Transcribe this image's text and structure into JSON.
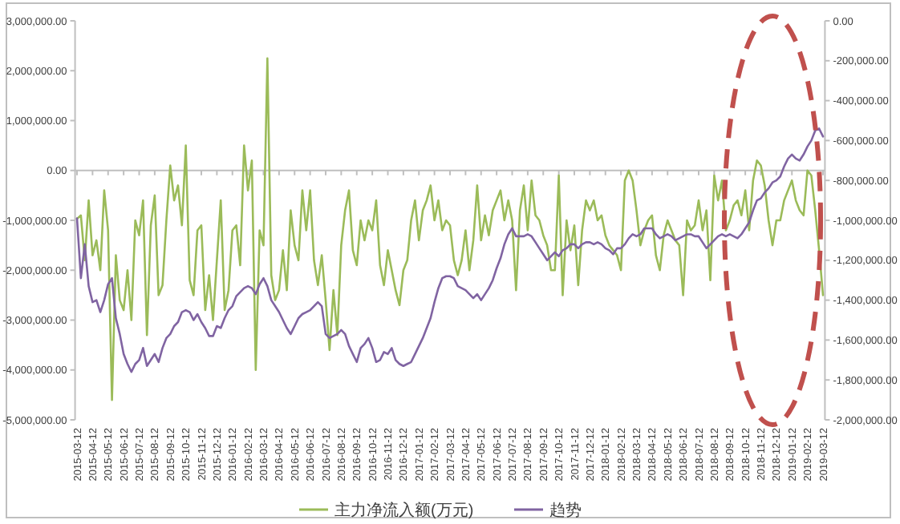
{
  "chart_data": {
    "type": "line",
    "legend": "bottom",
    "categories": [
      "2015-03-12",
      null,
      null,
      null,
      "2015-04-12",
      null,
      null,
      null,
      "2015-05-12",
      null,
      null,
      null,
      "2015-06-12",
      null,
      null,
      null,
      "2015-07-12",
      null,
      null,
      null,
      "2015-08-12",
      null,
      null,
      null,
      "2015-09-12",
      null,
      null,
      null,
      "2015-10-12",
      null,
      null,
      null,
      "2015-11-12",
      null,
      null,
      null,
      "2015-12-12",
      null,
      null,
      null,
      "2016-01-12",
      null,
      null,
      null,
      "2016-02-12",
      null,
      null,
      null,
      "2016-03-12",
      null,
      null,
      null,
      "2016-04-12",
      null,
      null,
      null,
      "2016-05-12",
      null,
      null,
      null,
      "2016-06-12",
      null,
      null,
      null,
      "2016-07-12",
      null,
      null,
      null,
      "2016-08-12",
      null,
      null,
      null,
      "2016-09-12",
      null,
      null,
      null,
      "2016-10-12",
      null,
      null,
      null,
      "2016-11-12",
      null,
      null,
      null,
      "2016-12-12",
      null,
      null,
      null,
      "2017-01-12",
      null,
      null,
      null,
      "2017-02-12",
      null,
      null,
      null,
      "2017-03-12",
      null,
      null,
      null,
      "2017-04-12",
      null,
      null,
      null,
      "2017-05-12",
      null,
      null,
      null,
      "2017-06-12",
      null,
      null,
      null,
      "2017-07-12",
      null,
      null,
      null,
      "2017-08-12",
      null,
      null,
      null,
      "2017-09-12",
      null,
      null,
      null,
      "2017-10-12",
      null,
      null,
      null,
      "2017-11-12",
      null,
      null,
      null,
      "2017-12-12",
      null,
      null,
      null,
      "2018-01-12",
      null,
      null,
      null,
      "2018-02-12",
      null,
      null,
      null,
      "2018-03-12",
      null,
      null,
      null,
      "2018-04-12",
      null,
      null,
      null,
      "2018-05-12",
      null,
      null,
      null,
      "2018-06-12",
      null,
      null,
      null,
      "2018-07-12",
      null,
      null,
      null,
      "2018-08-12",
      null,
      null,
      null,
      "2018-09-12",
      null,
      null,
      null,
      "2018-10-12",
      null,
      null,
      null,
      "2018-11-12",
      null,
      null,
      null,
      "2018-12-12",
      null,
      null,
      null,
      "2019-01-12",
      null,
      null,
      null,
      "2019-02-12",
      null,
      null,
      null,
      "2019-03-12"
    ],
    "ylim": [
      -5000000,
      3000000
    ],
    "yticks": [
      {
        "value": -5000000,
        "label": "-5,000,000.00"
      },
      {
        "value": -4000000,
        "label": "-4,000,000.00"
      },
      {
        "value": -3000000,
        "label": "-3,000,000.00"
      },
      {
        "value": -2000000,
        "label": "-2,000,000.00"
      },
      {
        "value": -1000000,
        "label": "-1,000,000.00"
      },
      {
        "value": 0,
        "label": "0.00"
      },
      {
        "value": 1000000,
        "label": "1,000,000.00"
      },
      {
        "value": 2000000,
        "label": "2,000,000.00"
      },
      {
        "value": 3000000,
        "label": "3,000,000.00"
      }
    ],
    "y2lim": [
      -2000000,
      0
    ],
    "y2ticks": [
      {
        "value": -2000000,
        "label": "-2,000,000.00"
      },
      {
        "value": -1800000,
        "label": "-1,800,000.00"
      },
      {
        "value": -1600000,
        "label": "-1,600,000.00"
      },
      {
        "value": -1400000,
        "label": "-1,400,000.00"
      },
      {
        "value": -1200000,
        "label": "-1,200,000.00"
      },
      {
        "value": -1000000,
        "label": "-1,000,000.00"
      },
      {
        "value": -800000,
        "label": "-800,000.00"
      },
      {
        "value": -600000,
        "label": "-600,000.00"
      },
      {
        "value": -400000,
        "label": "-400,000.00"
      },
      {
        "value": -200000,
        "label": "-200,000.00"
      },
      {
        "value": 0,
        "label": "0.00"
      }
    ],
    "series": [
      {
        "name": "主力净流入额(万元)",
        "color": "#9bbb59",
        "values": [
          -970000,
          -900000,
          -1800000,
          -600000,
          -1700000,
          -1400000,
          -2000000,
          -400000,
          -1200000,
          -4600000,
          -1700000,
          -2600000,
          -2800000,
          -2000000,
          -3000000,
          -1000000,
          -1300000,
          -600000,
          -3300000,
          -1100000,
          -500000,
          -2500000,
          -2300000,
          -1000000,
          100000,
          -600000,
          -300000,
          -1100000,
          500000,
          -2200000,
          -2500000,
          -1200000,
          -1100000,
          -2800000,
          -2100000,
          -3000000,
          -1800000,
          -600000,
          -2800000,
          -2400000,
          -1200000,
          -1100000,
          -1900000,
          500000,
          -400000,
          200000,
          -4000000,
          -1200000,
          -1500000,
          2250000,
          -2100000,
          -2600000,
          -2400000,
          -1600000,
          -2400000,
          -800000,
          -1500000,
          -1800000,
          -400000,
          -1200000,
          -400000,
          -1800000,
          -2300000,
          -1700000,
          -2600000,
          -3600000,
          -2400000,
          -3300000,
          -1500000,
          -800000,
          -400000,
          -1600000,
          -1900000,
          -1000000,
          -1400000,
          -1000000,
          -1200000,
          -600000,
          -1900000,
          -2300000,
          -1600000,
          -2000000,
          -2400000,
          -2700000,
          -2000000,
          -1800000,
          -1000000,
          -600000,
          -1400000,
          -800000,
          -600000,
          -300000,
          -1000000,
          -600000,
          -1200000,
          -1000000,
          -1100000,
          -1800000,
          -2100000,
          -1800000,
          -1200000,
          -2000000,
          -1400000,
          -300000,
          -1400000,
          -900000,
          -1300000,
          -800000,
          -600000,
          -400000,
          -1000000,
          -600000,
          -1000000,
          -2400000,
          -800000,
          -300000,
          -1200000,
          -200000,
          -900000,
          -1000000,
          -1300000,
          -1500000,
          -2000000,
          -2000000,
          -100000,
          -2500000,
          -1000000,
          -1600000,
          -1100000,
          -2300000,
          -1200000,
          -600000,
          -800000,
          -600000,
          -1000000,
          -900000,
          -1300000,
          -1500000,
          -1600000,
          -1700000,
          -2000000,
          -200000,
          0,
          -200000,
          -800000,
          -1500000,
          -1200000,
          -1000000,
          -900000,
          -1700000,
          -2000000,
          -1300000,
          -1000000,
          -1200000,
          -1400000,
          -1500000,
          -2500000,
          -1000000,
          -1200000,
          -1100000,
          -600000,
          -1200000,
          -800000,
          -2200000,
          -100000,
          -600000,
          -200000,
          -1200000,
          -1000000,
          -700000,
          -600000,
          -900000,
          -400000,
          -1200000,
          -200000,
          200000,
          100000,
          -300000,
          -1000000,
          -1500000,
          -1000000,
          -1000000,
          -600000,
          -400000,
          -200000,
          -600000,
          -800000,
          -900000,
          0,
          -100000,
          -800000,
          -1600000,
          -2500000
        ]
      },
      {
        "name": "趋势",
        "color": "#8064a2",
        "axis": "y2",
        "values": [
          -990000,
          -1290000,
          -1120000,
          -1330000,
          -1410000,
          -1400000,
          -1460000,
          -1400000,
          -1320000,
          -1290000,
          -1490000,
          -1570000,
          -1670000,
          -1720000,
          -1760000,
          -1720000,
          -1700000,
          -1640000,
          -1730000,
          -1700000,
          -1670000,
          -1710000,
          -1640000,
          -1590000,
          -1570000,
          -1530000,
          -1510000,
          -1460000,
          -1450000,
          -1460000,
          -1500000,
          -1470000,
          -1510000,
          -1540000,
          -1580000,
          -1580000,
          -1530000,
          -1540000,
          -1490000,
          -1450000,
          -1430000,
          -1380000,
          -1360000,
          -1340000,
          -1330000,
          -1340000,
          -1370000,
          -1320000,
          -1290000,
          -1330000,
          -1400000,
          -1430000,
          -1460000,
          -1500000,
          -1540000,
          -1570000,
          -1530000,
          -1490000,
          -1470000,
          -1460000,
          -1450000,
          -1430000,
          -1410000,
          -1430000,
          -1570000,
          -1590000,
          -1580000,
          -1570000,
          -1550000,
          -1570000,
          -1630000,
          -1670000,
          -1710000,
          -1640000,
          -1620000,
          -1590000,
          -1640000,
          -1710000,
          -1700000,
          -1660000,
          -1670000,
          -1640000,
          -1700000,
          -1720000,
          -1730000,
          -1720000,
          -1710000,
          -1670000,
          -1630000,
          -1590000,
          -1540000,
          -1490000,
          -1410000,
          -1340000,
          -1290000,
          -1280000,
          -1280000,
          -1290000,
          -1330000,
          -1340000,
          -1350000,
          -1370000,
          -1390000,
          -1370000,
          -1400000,
          -1370000,
          -1340000,
          -1300000,
          -1240000,
          -1190000,
          -1120000,
          -1070000,
          -1040000,
          -1080000,
          -1080000,
          -1080000,
          -1070000,
          -1080000,
          -1110000,
          -1140000,
          -1170000,
          -1200000,
          -1180000,
          -1160000,
          -1180000,
          -1150000,
          -1140000,
          -1120000,
          -1120000,
          -1140000,
          -1120000,
          -1110000,
          -1110000,
          -1120000,
          -1110000,
          -1120000,
          -1140000,
          -1150000,
          -1170000,
          -1140000,
          -1140000,
          -1120000,
          -1090000,
          -1070000,
          -1080000,
          -1070000,
          -1040000,
          -1040000,
          -1040000,
          -1070000,
          -1090000,
          -1080000,
          -1070000,
          -1080000,
          -1100000,
          -1090000,
          -1080000,
          -1070000,
          -1070000,
          -1080000,
          -1080000,
          -1110000,
          -1140000,
          -1120000,
          -1100000,
          -1080000,
          -1070000,
          -1080000,
          -1070000,
          -1080000,
          -1090000,
          -1070000,
          -1040000,
          -1010000,
          -950000,
          -900000,
          -890000,
          -860000,
          -840000,
          -810000,
          -800000,
          -780000,
          -730000,
          -690000,
          -670000,
          -690000,
          -700000,
          -670000,
          -630000,
          -600000,
          -550000,
          -540000,
          -580000
        ]
      }
    ]
  }
}
